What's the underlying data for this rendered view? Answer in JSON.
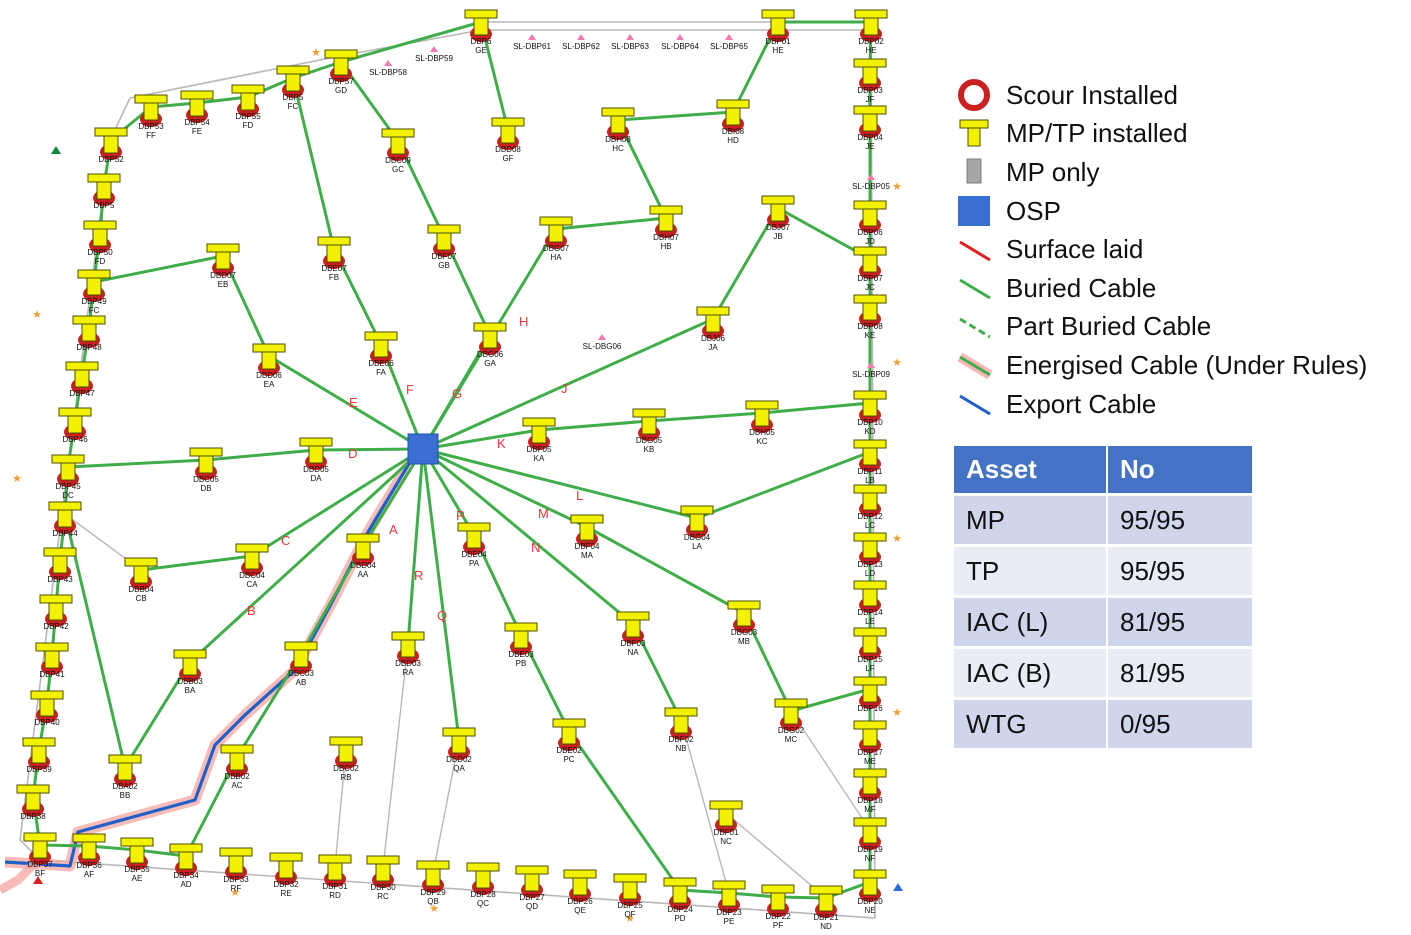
{
  "legend": [
    {
      "symbol": "scour",
      "label": "Scour Installed"
    },
    {
      "symbol": "mptp",
      "label": "MP/TP installed"
    },
    {
      "symbol": "mp",
      "label": "MP only"
    },
    {
      "symbol": "osp",
      "label": "OSP"
    },
    {
      "symbol": "surface",
      "label": "Surface laid"
    },
    {
      "symbol": "buried",
      "label": "Buried Cable"
    },
    {
      "symbol": "part",
      "label": "Part Buried Cable"
    },
    {
      "symbol": "energised",
      "label": "Energised Cable (Under Rules)"
    },
    {
      "symbol": "export",
      "label": "Export Cable"
    }
  ],
  "table": {
    "headers": [
      "Asset",
      "No"
    ],
    "rows": [
      [
        "MP",
        "95/95"
      ],
      [
        "TP",
        "95/95"
      ],
      [
        "IAC (L)",
        "81/95"
      ],
      [
        "IAC (B)",
        "81/95"
      ],
      [
        "WTG",
        "0/95"
      ]
    ]
  },
  "colors": {
    "buried": "#3fae49",
    "export": "#1f5fc8",
    "energised_glow": "#f5a5a0",
    "tp_fill": "#f2f200",
    "tp_stroke": "#4d4d00",
    "scour": "#cc1f1f",
    "osp": "#3a6fd1",
    "boundary": "#b8b8b8",
    "header": "#4472c4"
  },
  "turbines": [
    {
      "id": "DBP61",
      "l1": "DBP6",
      "l2": "GE"
    },
    {
      "id": "DBP01",
      "l1": "DBP01",
      "l2": "HE"
    },
    {
      "id": "DBP02",
      "l1": "DBP02",
      "l2": "HE"
    },
    {
      "id": "DBP57",
      "l1": "DBP57",
      "l2": "GD"
    },
    {
      "id": "DBP58",
      "l1": "DBP5",
      "l2": "FC"
    },
    {
      "id": "DBP55",
      "l1": "DBP55",
      "l2": "FD"
    },
    {
      "id": "DBP54",
      "l1": "DBP54",
      "l2": "FE"
    },
    {
      "id": "DBP53",
      "l1": "DBP53",
      "l2": "FF"
    },
    {
      "id": "DBP52",
      "l1": "DBP52",
      "l2": ""
    },
    {
      "id": "DBP51",
      "l1": "DBP5",
      "l2": ""
    },
    {
      "id": "DBP50",
      "l1": "DBP50",
      "l2": "FD"
    },
    {
      "id": "DBP49",
      "l1": "DBP49",
      "l2": "FC"
    },
    {
      "id": "DBP48",
      "l1": "DBP48",
      "l2": ""
    },
    {
      "id": "DBP47",
      "l1": "DBP47",
      "l2": ""
    },
    {
      "id": "DBP46",
      "l1": "DBP46",
      "l2": ""
    },
    {
      "id": "DBP45",
      "l1": "DBP45",
      "l2": "DC"
    },
    {
      "id": "DBP44",
      "l1": "DBP44",
      "l2": ""
    },
    {
      "id": "DBP43",
      "l1": "DBP43",
      "l2": ""
    },
    {
      "id": "DBP42",
      "l1": "DBP42",
      "l2": ""
    },
    {
      "id": "DBP41",
      "l1": "DBP41",
      "l2": ""
    },
    {
      "id": "DBP40",
      "l1": "DBP40",
      "l2": ""
    },
    {
      "id": "DBP39",
      "l1": "DBP39",
      "l2": ""
    },
    {
      "id": "DBP38",
      "l1": "DBP38",
      "l2": ""
    },
    {
      "id": "DBP37",
      "l1": "DBP37",
      "l2": "BF"
    },
    {
      "id": "DBP36",
      "l1": "DBP36",
      "l2": "AF"
    },
    {
      "id": "DBP35",
      "l1": "DBP35",
      "l2": "AE"
    },
    {
      "id": "DBP34",
      "l1": "DBP34",
      "l2": "AD"
    },
    {
      "id": "DBP33",
      "l1": "DBP33",
      "l2": "RF"
    },
    {
      "id": "DBP32",
      "l1": "DBP32",
      "l2": "RE"
    },
    {
      "id": "DBP31",
      "l1": "DBP31",
      "l2": "RD"
    },
    {
      "id": "DBP30",
      "l1": "DBP30",
      "l2": "RC"
    },
    {
      "id": "DBP29",
      "l1": "DBP29",
      "l2": "QB"
    },
    {
      "id": "DBP28",
      "l1": "DBP28",
      "l2": "QC"
    },
    {
      "id": "DBP27",
      "l1": "DBP27",
      "l2": "QD"
    },
    {
      "id": "DBP26",
      "l1": "DBP26",
      "l2": "QE"
    },
    {
      "id": "DBP25",
      "l1": "DBP25",
      "l2": "QF"
    },
    {
      "id": "DBP24",
      "l1": "DBP24",
      "l2": "PD"
    },
    {
      "id": "DBP23",
      "l1": "DBP23",
      "l2": "PE"
    },
    {
      "id": "DBP22",
      "l1": "DBP22",
      "l2": "PF"
    },
    {
      "id": "DBP21",
      "l1": "DBP21",
      "l2": "ND"
    },
    {
      "id": "DBP20",
      "l1": "DBP20",
      "l2": "NE"
    },
    {
      "id": "DBP19",
      "l1": "DBP19",
      "l2": "NF"
    },
    {
      "id": "DBP18",
      "l1": "DBP18",
      "l2": "MF"
    },
    {
      "id": "DBP17",
      "l1": "DBP17",
      "l2": "ME"
    },
    {
      "id": "DBP16",
      "l1": "DBP16",
      "l2": ""
    },
    {
      "id": "DBP15",
      "l1": "DBP15",
      "l2": "LF"
    },
    {
      "id": "DBP14",
      "l1": "DBP14",
      "l2": "LE"
    },
    {
      "id": "DBP13",
      "l1": "DBP13",
      "l2": "LD"
    },
    {
      "id": "DBP12",
      "l1": "DBP12",
      "l2": "LC"
    },
    {
      "id": "DBP11",
      "l1": "DBP11",
      "l2": "LB"
    },
    {
      "id": "DBP10",
      "l1": "DBP10",
      "l2": "KD"
    },
    {
      "id": "DBP08",
      "l1": "DBP08",
      "l2": "KE"
    },
    {
      "id": "DBP07R",
      "l1": "DBP07",
      "l2": "JC"
    },
    {
      "id": "DBP06",
      "l1": "DBP06",
      "l2": "JD"
    },
    {
      "id": "DBP04",
      "l1": "DBP04",
      "l2": "JE"
    },
    {
      "id": "DBP03",
      "l1": "DBP03",
      "l2": "JF"
    },
    {
      "id": "DBD08",
      "l1": "DBD08",
      "l2": "GF"
    },
    {
      "id": "DBC09",
      "l1": "DBC09",
      "l2": "GC"
    },
    {
      "id": "DBE07",
      "l1": "DBE07",
      "l2": "FB"
    },
    {
      "id": "DBF07",
      "l1": "DBF07",
      "l2": "GB"
    },
    {
      "id": "DBG07",
      "l1": "DBG07",
      "l2": "HA"
    },
    {
      "id": "DBH08",
      "l1": "DBH08",
      "l2": "HC"
    },
    {
      "id": "DBI08",
      "l1": "DBI08",
      "l2": "HD"
    },
    {
      "id": "DBH07",
      "l1": "DBH07",
      "l2": "HB"
    },
    {
      "id": "DBJ07",
      "l1": "DBJ07",
      "l2": "JB"
    },
    {
      "id": "DBD07",
      "l1": "DBD07",
      "l2": "EB"
    },
    {
      "id": "DBG06",
      "l1": "DBG06",
      "l2": "GA"
    },
    {
      "id": "DBE06",
      "l1": "DBE06",
      "l2": "FA"
    },
    {
      "id": "DBD06",
      "l1": "DBD06",
      "l2": "EA"
    },
    {
      "id": "DBJ06",
      "l1": "DBJ06",
      "l2": "JA"
    },
    {
      "id": "DBC05",
      "l1": "DBC05",
      "l2": "DB"
    },
    {
      "id": "DBD05",
      "l1": "DBD05",
      "l2": "DA"
    },
    {
      "id": "DBF05",
      "l1": "DBF05",
      "l2": "KA"
    },
    {
      "id": "DBG05",
      "l1": "DBG05",
      "l2": "KB"
    },
    {
      "id": "DBH05",
      "l1": "DBH05",
      "l2": "KC"
    },
    {
      "id": "DBB04",
      "l1": "DBB04",
      "l2": "CB"
    },
    {
      "id": "DBC04",
      "l1": "DBC04",
      "l2": "CA"
    },
    {
      "id": "DBD04",
      "l1": "DBD04",
      "l2": "AA"
    },
    {
      "id": "DBE04",
      "l1": "DBE04",
      "l2": "PA"
    },
    {
      "id": "DBF04",
      "l1": "DBF04",
      "l2": "MA"
    },
    {
      "id": "DBG04",
      "l1": "DBG04",
      "l2": "LA"
    },
    {
      "id": "DBB03",
      "l1": "DBB03",
      "l2": "BA"
    },
    {
      "id": "DBC03",
      "l1": "DBC03",
      "l2": "AB"
    },
    {
      "id": "DBD03",
      "l1": "DBD03",
      "l2": "RA"
    },
    {
      "id": "DBE03",
      "l1": "DBE03",
      "l2": "PB"
    },
    {
      "id": "DBF03",
      "l1": "DBF03",
      "l2": "NA"
    },
    {
      "id": "DBG03",
      "l1": "DBG03",
      "l2": "MB"
    },
    {
      "id": "DBA02",
      "l1": "DBA02",
      "l2": "BB"
    },
    {
      "id": "DBB02",
      "l1": "DBB02",
      "l2": "AC"
    },
    {
      "id": "DBC02",
      "l1": "DBC02",
      "l2": "RB"
    },
    {
      "id": "DBD02",
      "l1": "DBD02",
      "l2": "QA"
    },
    {
      "id": "DBE02",
      "l1": "DBE02",
      "l2": "PC"
    },
    {
      "id": "DBF02",
      "l1": "DBF02",
      "l2": "NB"
    },
    {
      "id": "DBG02",
      "l1": "DBG02",
      "l2": "MC"
    },
    {
      "id": "DBF01",
      "l1": "DBF01",
      "l2": "NC"
    }
  ],
  "sl_markers": [
    {
      "id": "s61",
      "label": "SL-DBP61"
    },
    {
      "id": "s62",
      "label": "SL-DBP62"
    },
    {
      "id": "s63",
      "label": "SL-DBP63"
    },
    {
      "id": "s64",
      "label": "SL-DBP64"
    },
    {
      "id": "s65",
      "label": "SL-DBP65"
    },
    {
      "id": "s59",
      "label": "SL-DBP59"
    },
    {
      "id": "s58",
      "label": "SL-DBP58"
    },
    {
      "id": "s05",
      "label": "SL-DBP05"
    },
    {
      "id": "s09",
      "label": "SL-DBP09"
    },
    {
      "id": "sg6",
      "label": "SL-DBG06"
    }
  ],
  "circuits": [
    "A",
    "B",
    "C",
    "D",
    "E",
    "F",
    "G",
    "H",
    "J",
    "K",
    "L",
    "M",
    "N",
    "P",
    "Q",
    "R"
  ]
}
